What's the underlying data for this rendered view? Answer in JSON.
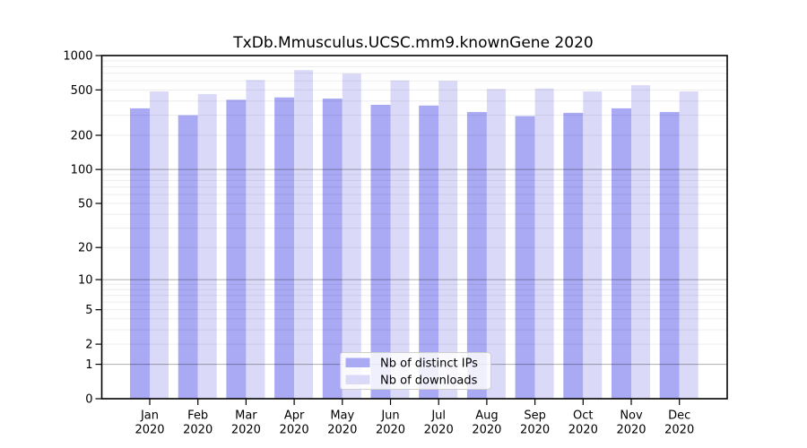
{
  "chart_data": {
    "type": "bar",
    "title": "TxDb.Mmusculus.UCSC.mm9.knownGene 2020",
    "categories": [
      "Jan",
      "Feb",
      "Mar",
      "Apr",
      "May",
      "Jun",
      "Jul",
      "Aug",
      "Sep",
      "Oct",
      "Nov",
      "Dec"
    ],
    "category_year": "2020",
    "series": [
      {
        "name": "Nb of distinct IPs",
        "color": "#a9a9f4",
        "values": [
          345,
          300,
          410,
          430,
          420,
          370,
          365,
          320,
          295,
          315,
          345,
          320
        ]
      },
      {
        "name": "Nb of downloads",
        "color": "#dadaf8",
        "values": [
          485,
          460,
          610,
          745,
          695,
          605,
          600,
          510,
          515,
          485,
          550,
          485
        ]
      }
    ],
    "xlabel": "",
    "ylabel": "",
    "y_scale": "log10(1+x)",
    "ylim": [
      0,
      1000
    ],
    "y_ticks": [
      1000,
      500,
      200,
      100,
      50,
      20,
      10,
      5,
      2,
      1,
      0
    ],
    "grid_major_values": [
      1,
      10,
      100
    ],
    "grid_minor_values": [
      2,
      3,
      4,
      5,
      6,
      7,
      8,
      9,
      20,
      30,
      40,
      50,
      60,
      70,
      80,
      90,
      200,
      300,
      400,
      500,
      600,
      700,
      800,
      900
    ],
    "grid": "horizontal",
    "legend_position": "inside-bottom-center",
    "colors": {
      "axis": "#000000",
      "grid_major": "#b3b3b3",
      "grid_minor": "#ebebeb",
      "background": "#ffffff"
    }
  }
}
